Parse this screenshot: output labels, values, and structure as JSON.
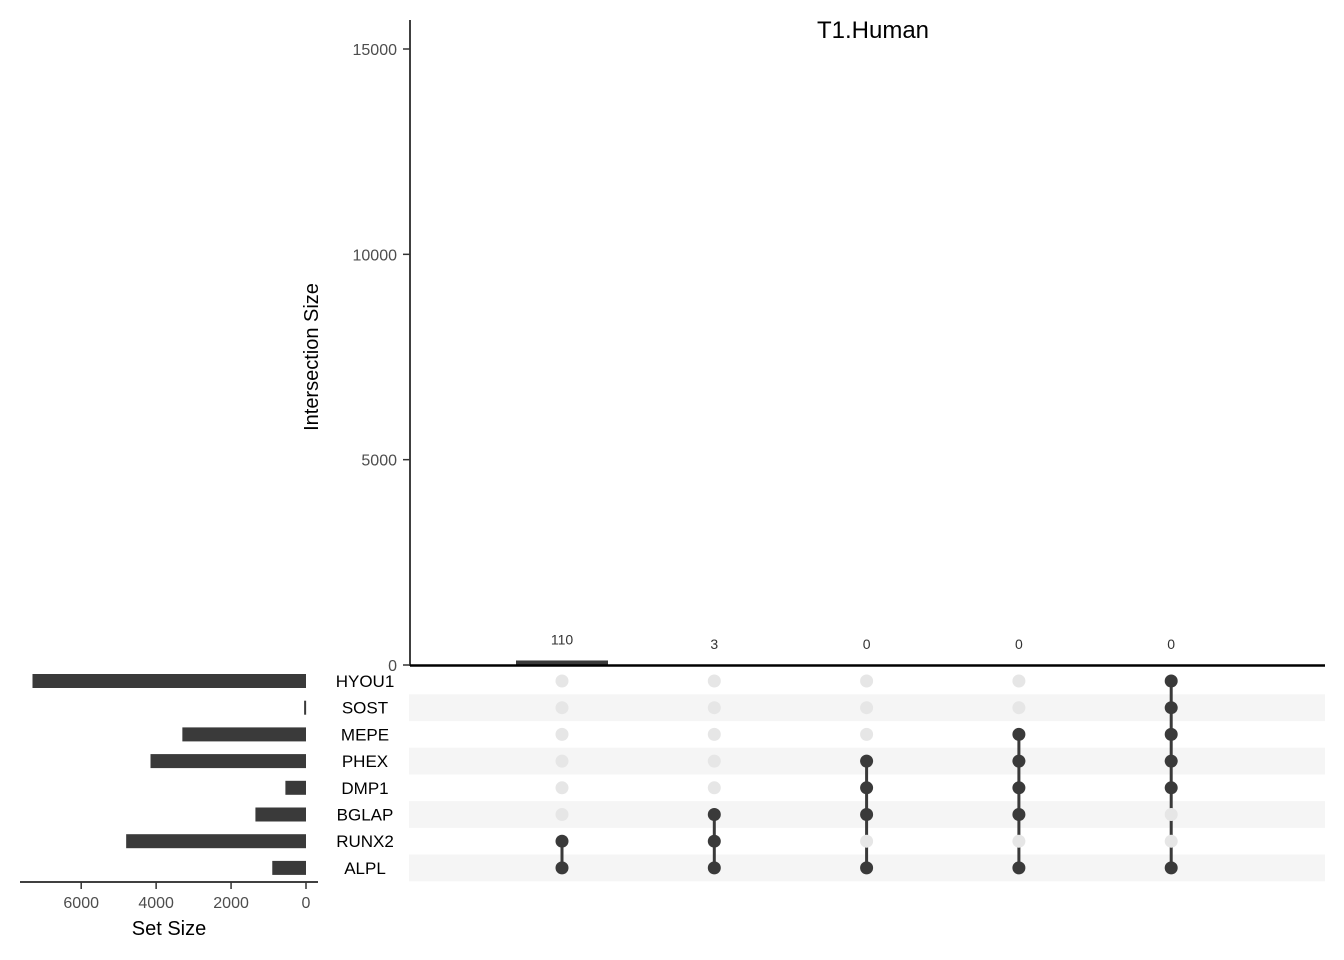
{
  "chart_data": {
    "type": "upset",
    "title": "T1.Human",
    "intersection_axis": {
      "label": "Intersection Size",
      "ylim": [
        0,
        15000
      ],
      "ticks": [
        0,
        5000,
        10000,
        15000
      ],
      "tick_labels": [
        "0",
        "5000",
        "10000",
        "15000"
      ]
    },
    "set_size_axis": {
      "label": "Set Size",
      "xlim": [
        0,
        7500
      ],
      "ticks": [
        6000,
        4000,
        2000,
        0
      ],
      "tick_labels": [
        "6000",
        "4000",
        "2000",
        "0"
      ]
    },
    "sets": [
      {
        "name": "HYOU1",
        "size": 7300
      },
      {
        "name": "SOST",
        "size": 50
      },
      {
        "name": "MEPE",
        "size": 3300
      },
      {
        "name": "PHEX",
        "size": 4150
      },
      {
        "name": "DMP1",
        "size": 550
      },
      {
        "name": "BGLAP",
        "size": 1350
      },
      {
        "name": "RUNX2",
        "size": 4800
      },
      {
        "name": "ALPL",
        "size": 900
      }
    ],
    "intersections": [
      {
        "size": 110,
        "label": "110",
        "members": [
          "RUNX2",
          "ALPL"
        ]
      },
      {
        "size": 3,
        "label": "3",
        "members": [
          "BGLAP",
          "RUNX2",
          "ALPL"
        ]
      },
      {
        "size": 0,
        "label": "0",
        "members": [
          "PHEX",
          "DMP1",
          "BGLAP",
          "ALPL"
        ]
      },
      {
        "size": 0,
        "label": "0",
        "members": [
          "MEPE",
          "PHEX",
          "DMP1",
          "BGLAP",
          "ALPL"
        ]
      },
      {
        "size": 0,
        "label": "0",
        "members": [
          "HYOU1",
          "SOST",
          "MEPE",
          "PHEX",
          "DMP1",
          "ALPL"
        ]
      }
    ],
    "grid": false,
    "colors": {
      "bar": "#3a3a3a",
      "dot_active": "#3a3a3a",
      "dot_inactive": "#e6e6e6",
      "stripe": "#f5f5f5"
    }
  }
}
